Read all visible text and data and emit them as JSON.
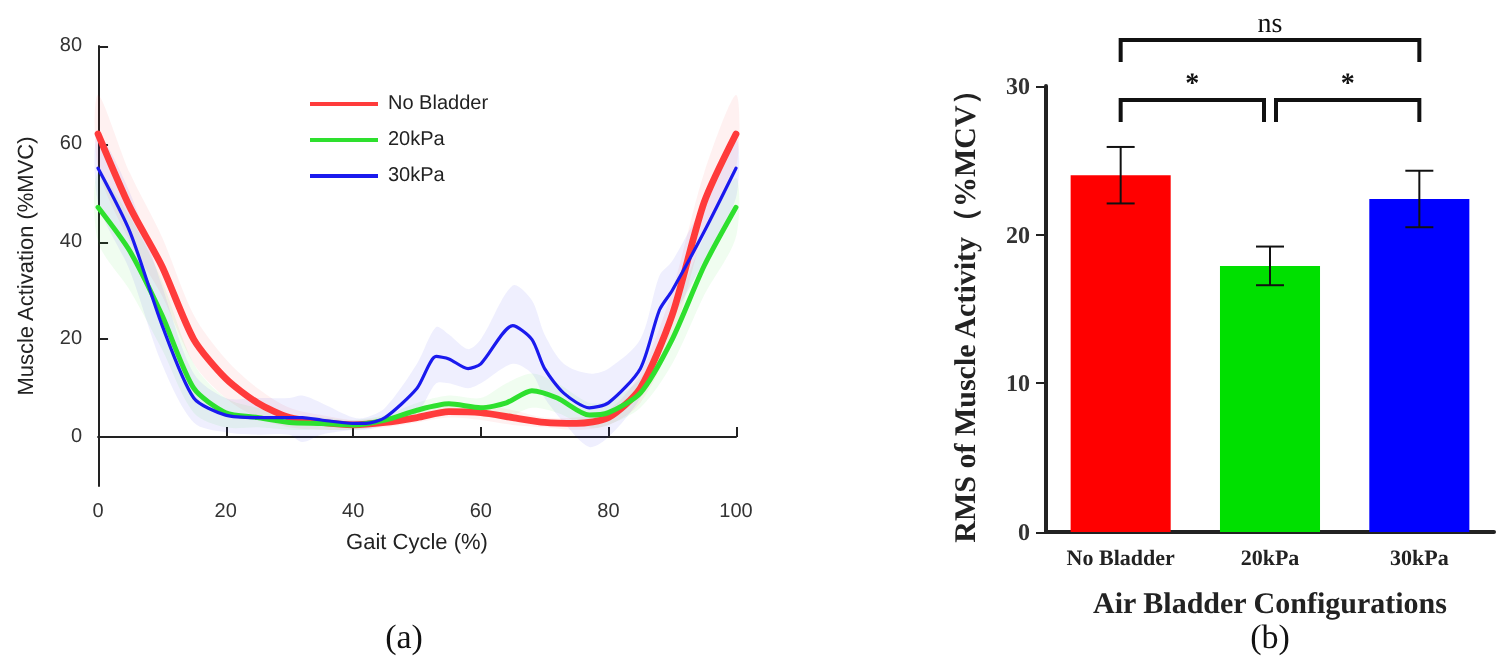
{
  "chart_data": [
    {
      "type": "line",
      "xlabel": "Gait Cycle (%)",
      "ylabel": "Muscle Activation (%MVC)",
      "xlim": [
        0,
        100
      ],
      "xticks": [
        0,
        20,
        40,
        60,
        80,
        100
      ],
      "ylim": [
        -10,
        80
      ],
      "yticks": [
        0,
        20,
        40,
        60,
        80
      ],
      "legend": "top",
      "marker": "none",
      "line_style": "solid",
      "annotations": [
        "(a)"
      ],
      "series": [
        {
          "name": "No Bladder",
          "color": "#ff3b3b",
          "x": [
            0,
            5,
            10,
            15,
            20,
            25,
            30,
            35,
            40,
            45,
            50,
            55,
            60,
            65,
            70,
            75,
            80,
            85,
            90,
            95,
            100
          ],
          "values": [
            62,
            47,
            35,
            20,
            12,
            7,
            4,
            3,
            2.5,
            3,
            4,
            5.2,
            5,
            4,
            3,
            2.8,
            4,
            10,
            25,
            48,
            62
          ],
          "lower": [
            55,
            40,
            29,
            15,
            8,
            4,
            2,
            1.5,
            1.5,
            2,
            3,
            4,
            3.5,
            2.5,
            2,
            1.5,
            2.5,
            7,
            20,
            42,
            55
          ],
          "upper": [
            70,
            54,
            41,
            25,
            16,
            10,
            6,
            4.5,
            3.5,
            4,
            5,
            6.5,
            6.5,
            5.5,
            4,
            4,
            5.5,
            13,
            30,
            54,
            70
          ]
        },
        {
          "name": "20kPa",
          "color": "#2ee02e",
          "x": [
            0,
            5,
            10,
            15,
            20,
            25,
            30,
            35,
            40,
            45,
            50,
            55,
            60,
            64,
            68,
            72,
            77,
            80,
            85,
            90,
            95,
            100
          ],
          "values": [
            47,
            38,
            25,
            10,
            5,
            4,
            3,
            2.8,
            2.5,
            3.5,
            5.5,
            6.8,
            6,
            7,
            9.5,
            8,
            4.5,
            5,
            9,
            20,
            35,
            47
          ],
          "lower": [
            40,
            30,
            18,
            5,
            2,
            2,
            1.5,
            1.5,
            1.5,
            2.5,
            4,
            5,
            4.5,
            4,
            6,
            5,
            2,
            2.5,
            6,
            15,
            29,
            41
          ],
          "upper": [
            54,
            45,
            32,
            15,
            8,
            6,
            4.5,
            4,
            3.5,
            4.5,
            7,
            8.5,
            8,
            11,
            13,
            11,
            7,
            7.5,
            12,
            25,
            41,
            53
          ]
        },
        {
          "name": "30kPa",
          "color": "#1a1aee",
          "x": [
            0,
            5,
            10,
            15,
            20,
            25,
            30,
            32,
            35,
            40,
            42,
            45,
            50,
            53,
            55,
            58,
            60,
            65,
            68,
            70,
            73,
            77,
            80,
            85,
            88,
            90,
            95,
            100
          ],
          "values": [
            55,
            42,
            23,
            8,
            4.5,
            4,
            4,
            4,
            3.5,
            2.8,
            2.8,
            4,
            10,
            16.5,
            16,
            14,
            15,
            22.8,
            20,
            14,
            9,
            6,
            7,
            14,
            26,
            30,
            42,
            55
          ],
          "lower": [
            48,
            34,
            15,
            3,
            1,
            0.5,
            0.5,
            -1,
            0.5,
            1.5,
            1.5,
            2.5,
            5,
            11,
            11,
            10,
            11,
            15,
            13,
            8,
            3,
            -2,
            0,
            8,
            18,
            24,
            36,
            49
          ],
          "upper": [
            62,
            50,
            31,
            13,
            8,
            8,
            8,
            8.5,
            7,
            4,
            4,
            6,
            15,
            22.5,
            21,
            18,
            20,
            31,
            28,
            21,
            15,
            13,
            14,
            20,
            33,
            36,
            48,
            61
          ]
        }
      ]
    },
    {
      "type": "bar",
      "xlabel": "Air Bladder Configurations",
      "ylabel": "RMS of Muscle Activity（%MCV）",
      "categories": [
        "No Bladder",
        "20kPa",
        "30kPa"
      ],
      "values": [
        24,
        17.9,
        22.4
      ],
      "errors": [
        1.9,
        1.3,
        1.9
      ],
      "colors": [
        "#ff0000",
        "#00e000",
        "#0000ff"
      ],
      "ylim": [
        0,
        30
      ],
      "yticks": [
        0,
        10,
        20,
        30
      ],
      "annotations": [
        "*",
        "*",
        "ns",
        "(b)"
      ]
    }
  ]
}
